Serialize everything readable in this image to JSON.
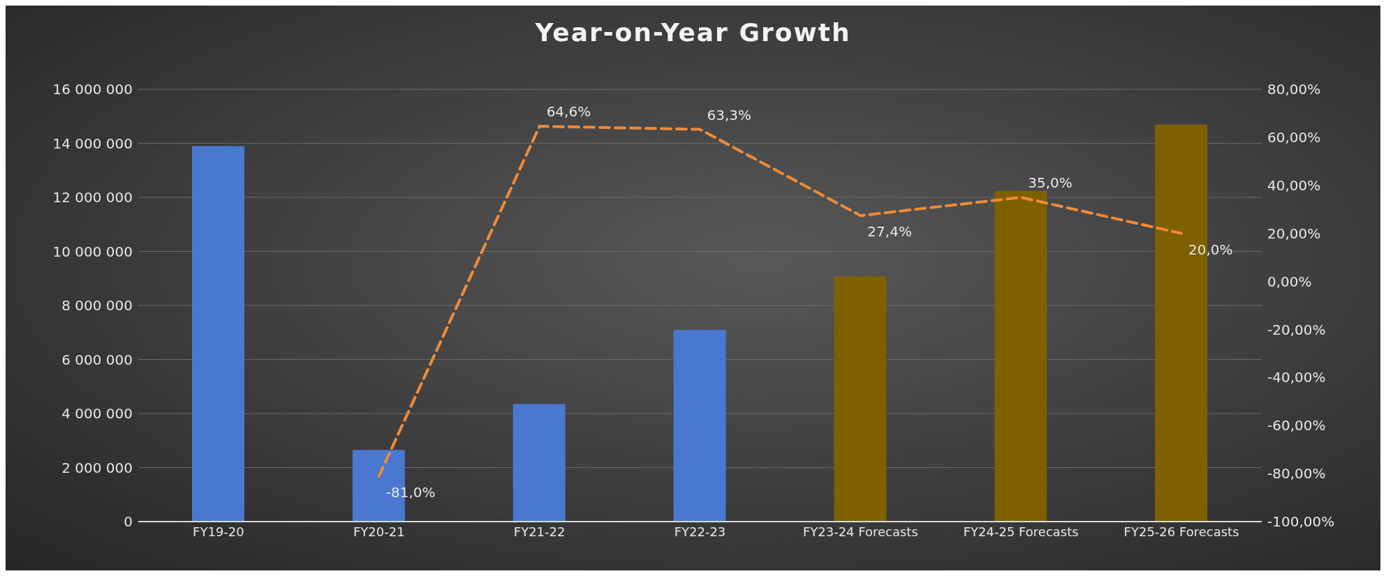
{
  "chart_data": {
    "type": "bar",
    "title": "Year-on-Year Growth",
    "categories": [
      "FY19-20",
      "FY20-21",
      "FY21-22",
      "FY22-23",
      "FY23-24 Forecasts",
      "FY24-25 Forecasts",
      "FY25-26 Forecasts"
    ],
    "series": [
      {
        "colors": [
          "#4a78d0",
          "#4a78d0",
          "#4a78d0",
          "#4a78d0",
          "#7f6000",
          "#7f6000",
          "#7f6000"
        ],
        "values": [
          13900000,
          2650000,
          4350000,
          7100000,
          9070000,
          12240000,
          14700000
        ]
      },
      {
        "type": "line",
        "axis": "y2",
        "color": "#f08a38",
        "line_style": "dashed",
        "marker": "none",
        "values": [
          null,
          -81.0,
          64.6,
          63.3,
          27.4,
          35.0,
          20.0
        ],
        "value_labels": [
          null,
          "-81,0%",
          "64,6%",
          "63,3%",
          "27,4%",
          "35,0%",
          "20,0%"
        ]
      }
    ],
    "ylim": [
      0,
      16000000
    ],
    "yticks": [
      {
        "value": 0,
        "label": "0"
      },
      {
        "value": 2000000,
        "label": "2 000 000"
      },
      {
        "value": 4000000,
        "label": "4 000 000"
      },
      {
        "value": 6000000,
        "label": "6 000 000"
      },
      {
        "value": 8000000,
        "label": "8 000 000"
      },
      {
        "value": 10000000,
        "label": "10 000 000"
      },
      {
        "value": 12000000,
        "label": "12 000 000"
      },
      {
        "value": 14000000,
        "label": "14 000 000"
      },
      {
        "value": 16000000,
        "label": "16 000 000"
      }
    ],
    "y2lim": [
      -100,
      80
    ],
    "y2ticks": [
      {
        "value": -100,
        "label": "-100,00%"
      },
      {
        "value": -80,
        "label": "-80,00%"
      },
      {
        "value": -60,
        "label": "-60,00%"
      },
      {
        "value": -40,
        "label": "-40,00%"
      },
      {
        "value": -20,
        "label": "-20,00%"
      },
      {
        "value": 0,
        "label": "0,00%"
      },
      {
        "value": 20,
        "label": "20,00%"
      },
      {
        "value": 40,
        "label": "40,00%"
      },
      {
        "value": 60,
        "label": "60,00%"
      },
      {
        "value": 80,
        "label": "80,00%"
      }
    ],
    "grid": "y"
  }
}
